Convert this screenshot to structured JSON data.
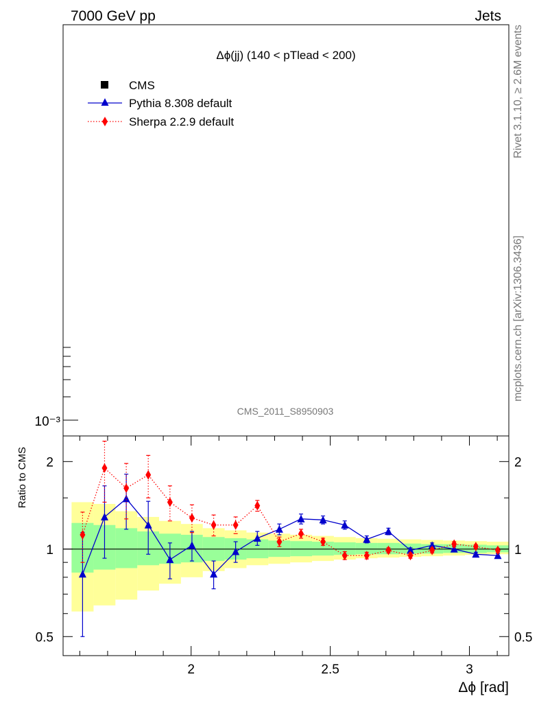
{
  "header": {
    "left": "7000 GeV pp",
    "right": "Jets"
  },
  "side": {
    "rivet": "Rivet 3.1.10, ≥ 2.6M events",
    "mcplots": "mcplots.cern.ch [arXiv:1306.3436]"
  },
  "chart_data": [
    {
      "type": "line",
      "panel": "main",
      "title": "Δϕ(jj) (140 < pTlead <  200)",
      "watermark": "CMS_2011_S8950903",
      "yscale": "log",
      "ytick_label": "10⁻³",
      "legend": {
        "placement": "top-left",
        "entries": [
          {
            "label": "CMS",
            "color": "#000000",
            "marker": "square"
          },
          {
            "label": "Pythia 8.308 default",
            "color": "#0000cc",
            "marker": "triangle"
          },
          {
            "label": "Sherpa 2.2.9 default",
            "color": "#ff0000",
            "marker": "diamond"
          }
        ]
      }
    },
    {
      "type": "line",
      "panel": "ratio",
      "ylabel": "Ratio to CMS",
      "xlabel": "Δϕ [rad]",
      "xlim": [
        1.54,
        3.1416
      ],
      "ylim_log": [
        0.43,
        2.45
      ],
      "xticks": [
        {
          "v": 2,
          "label": "2"
        },
        {
          "v": 2.5,
          "label": "2.5"
        },
        {
          "v": 3,
          "label": "3"
        }
      ],
      "yticks": [
        {
          "v": 0.5,
          "label": "0.5"
        },
        {
          "v": 1,
          "label": "1"
        },
        {
          "v": 2,
          "label": "2"
        }
      ],
      "x": [
        1.61,
        1.689,
        1.767,
        1.846,
        1.924,
        2.003,
        2.081,
        2.16,
        2.238,
        2.317,
        2.395,
        2.474,
        2.552,
        2.631,
        2.709,
        2.788,
        2.866,
        2.945,
        3.023,
        3.102
      ],
      "bands": {
        "yellow": {
          "color": "#ffff99",
          "lo": [
            0.61,
            0.64,
            0.67,
            0.72,
            0.76,
            0.8,
            0.84,
            0.86,
            0.88,
            0.89,
            0.9,
            0.91,
            0.92,
            0.93,
            0.935,
            0.94,
            0.945,
            0.95,
            0.955,
            0.96
          ],
          "hi": [
            1.45,
            1.43,
            1.35,
            1.29,
            1.25,
            1.22,
            1.18,
            1.16,
            1.14,
            1.13,
            1.12,
            1.11,
            1.1,
            1.09,
            1.085,
            1.08,
            1.075,
            1.07,
            1.065,
            1.06
          ]
        },
        "green": {
          "color": "#99ff99",
          "lo": [
            0.83,
            0.85,
            0.86,
            0.88,
            0.89,
            0.9,
            0.91,
            0.92,
            0.93,
            0.94,
            0.945,
            0.95,
            0.955,
            0.96,
            0.96,
            0.965,
            0.965,
            0.97,
            0.97,
            0.975
          ],
          "hi": [
            1.23,
            1.21,
            1.18,
            1.15,
            1.13,
            1.12,
            1.1,
            1.09,
            1.08,
            1.07,
            1.065,
            1.06,
            1.055,
            1.05,
            1.05,
            1.045,
            1.04,
            1.04,
            1.035,
            1.03
          ]
        }
      },
      "series": [
        {
          "name": "Pythia 8.308 default",
          "color": "#0000cc",
          "marker": "triangle",
          "line": "solid",
          "y": [
            0.82,
            1.29,
            1.49,
            1.21,
            0.92,
            1.03,
            0.82,
            0.98,
            1.09,
            1.17,
            1.27,
            1.26,
            1.21,
            1.08,
            1.15,
            0.99,
            1.03,
            1.0,
            0.96,
            0.95
          ],
          "err": [
            0.32,
            0.36,
            0.32,
            0.25,
            0.13,
            0.12,
            0.09,
            0.08,
            0.06,
            0.05,
            0.05,
            0.04,
            0.04,
            0.03,
            0.03,
            0.02,
            0.02,
            0.02,
            0.015,
            0.015
          ]
        },
        {
          "name": "Sherpa 2.2.9 default",
          "color": "#ff0000",
          "marker": "diamond",
          "line": "dotted",
          "y": [
            1.12,
            1.9,
            1.62,
            1.8,
            1.45,
            1.28,
            1.21,
            1.21,
            1.41,
            1.06,
            1.13,
            1.06,
            0.95,
            0.95,
            0.99,
            0.95,
            0.99,
            1.04,
            1.02,
            0.99
          ],
          "err": [
            0.22,
            0.45,
            0.35,
            0.3,
            0.2,
            0.14,
            0.1,
            0.08,
            0.06,
            0.04,
            0.04,
            0.03,
            0.03,
            0.025,
            0.02,
            0.02,
            0.02,
            0.02,
            0.015,
            0.015
          ]
        }
      ],
      "reference_line": 1
    }
  ]
}
